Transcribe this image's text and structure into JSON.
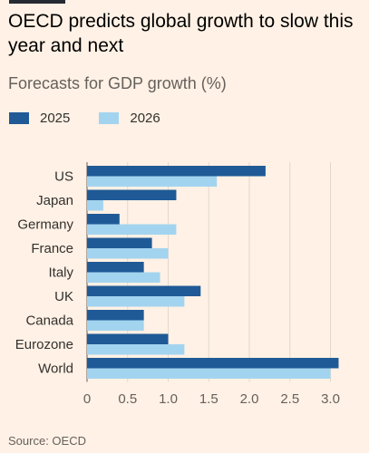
{
  "title": "OECD predicts global growth to slow this year and next",
  "subtitle": "Forecasts for GDP growth (%)",
  "source": "Source: OECD",
  "colors": {
    "background": "#fff1e5",
    "series_2025": "#1f5a96",
    "series_2026": "#a3d4ef",
    "grid": "#e3d7cc",
    "axis": "#66605c"
  },
  "chart_data": {
    "type": "bar",
    "orientation": "horizontal",
    "title": "OECD predicts global growth to slow this year and next",
    "subtitle": "Forecasts for GDP growth (%)",
    "categories": [
      "US",
      "Japan",
      "Germany",
      "France",
      "Italy",
      "UK",
      "Canada",
      "Eurozone",
      "World"
    ],
    "series": [
      {
        "name": "2025",
        "color": "#1f5a96",
        "values": [
          2.2,
          1.1,
          0.4,
          0.8,
          0.7,
          1.4,
          0.7,
          1.0,
          3.1
        ]
      },
      {
        "name": "2026",
        "color": "#a3d4ef",
        "values": [
          1.6,
          0.2,
          1.1,
          1.0,
          0.9,
          1.2,
          0.7,
          1.2,
          3.0
        ]
      }
    ],
    "xlim": [
      0,
      3.1
    ],
    "xticks": [
      "0",
      "0.5",
      "1.0",
      "1.5",
      "2.0",
      "2.5",
      "3.0"
    ],
    "tick_values": [
      0,
      0.5,
      1.0,
      1.5,
      2.0,
      2.5,
      3.0
    ],
    "grid": true,
    "legend_position": "top-left"
  }
}
